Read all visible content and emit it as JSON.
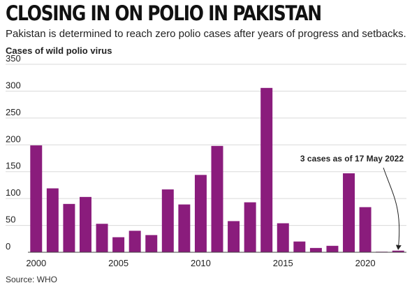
{
  "header": {
    "title": "CLOSING IN ON POLIO IN PAKISTAN",
    "subtitle": "Pakistan is determined to reach zero polio cases after years of progress and setbacks."
  },
  "footer": {
    "source": "Source: WHO"
  },
  "colors": {
    "bar": "#8a1c7c",
    "grid": "#d9d9d9",
    "axis": "#444444",
    "text": "#222222"
  },
  "chart_data": {
    "type": "bar",
    "title": "CLOSING IN ON POLIO IN PAKISTAN",
    "subtitle": "Pakistan is determined to reach zero polio cases after years of progress and setbacks.",
    "ylabel": "Cases of wild polio virus",
    "xlabel": "",
    "ylim": [
      0,
      350
    ],
    "yticks": [
      0,
      50,
      100,
      150,
      200,
      250,
      300,
      350
    ],
    "xtick_labels": [
      "2000",
      "2005",
      "2010",
      "2015",
      "2020"
    ],
    "grid": true,
    "categories": [
      2000,
      2001,
      2002,
      2003,
      2004,
      2005,
      2006,
      2007,
      2008,
      2009,
      2010,
      2011,
      2012,
      2013,
      2014,
      2015,
      2016,
      2017,
      2018,
      2019,
      2020,
      2021,
      2022
    ],
    "values": [
      199,
      119,
      90,
      103,
      53,
      28,
      40,
      32,
      117,
      89,
      144,
      198,
      58,
      93,
      306,
      54,
      20,
      8,
      12,
      147,
      84,
      1,
      3
    ],
    "annotation": {
      "text": "3 cases as of 17 May 2022",
      "category": 2022
    },
    "source": "Source: WHO"
  }
}
